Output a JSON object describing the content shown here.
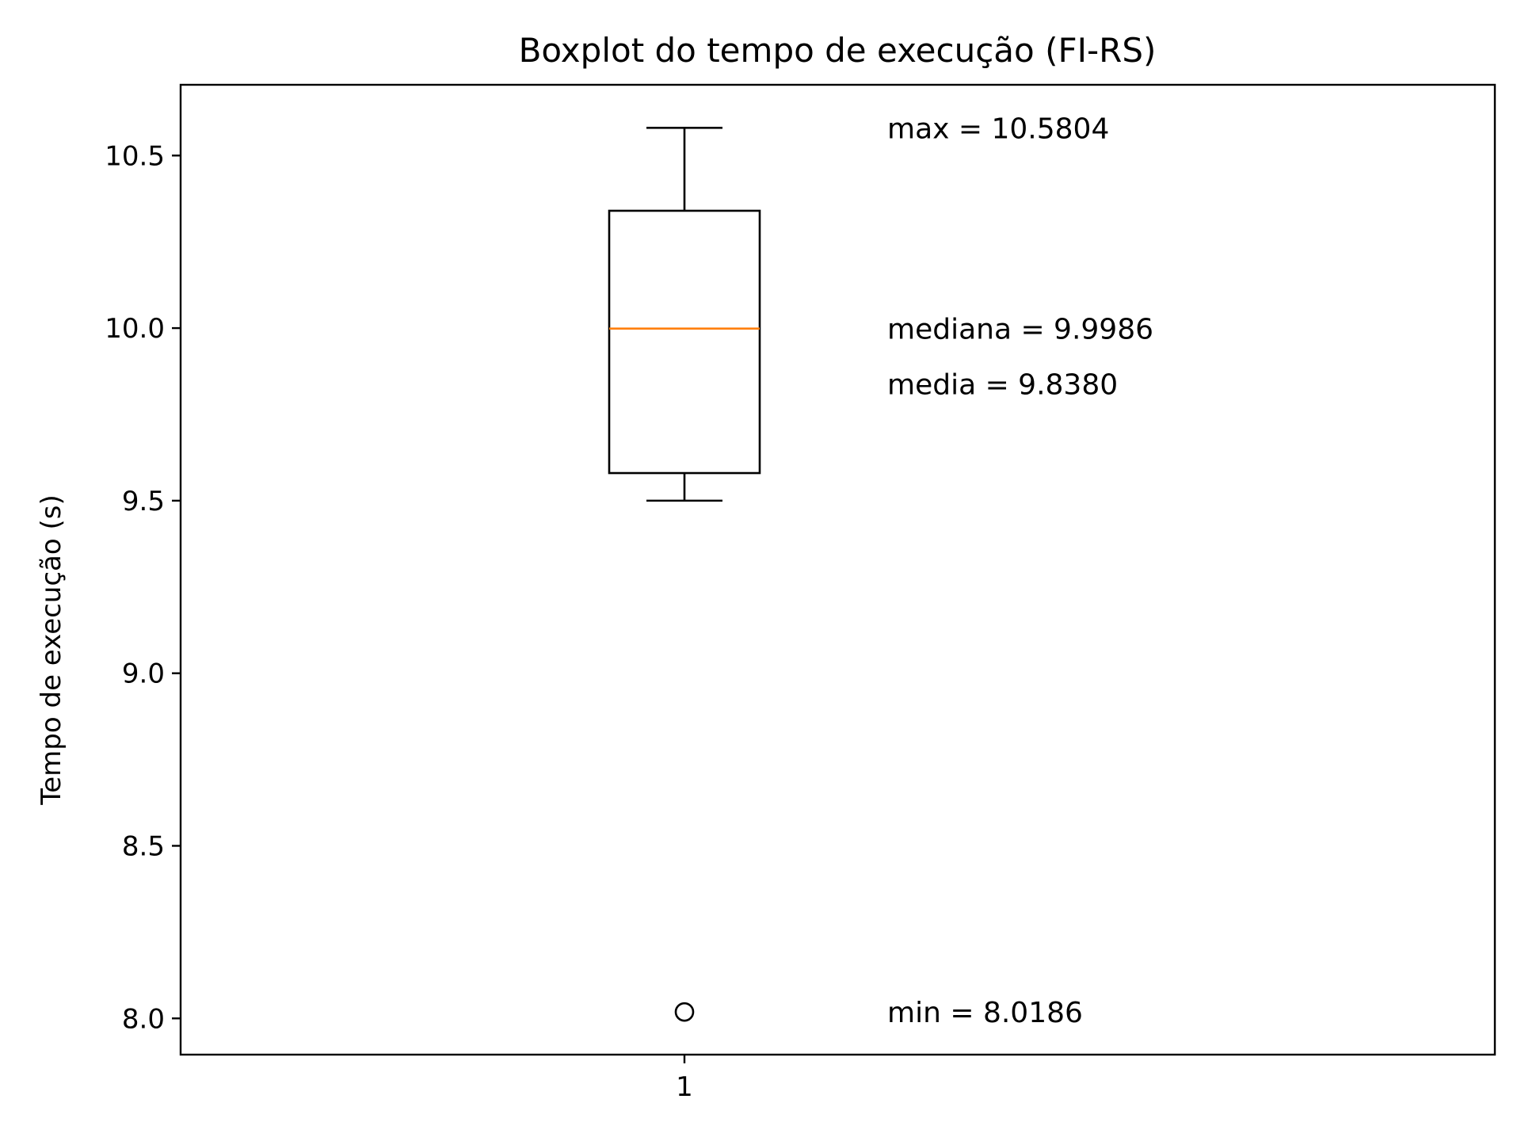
{
  "chart_data": {
    "type": "box",
    "title": "Boxplot do tempo de execução (FI-RS)",
    "xlabel": "",
    "ylabel": "Tempo de execução (s)",
    "categories": [
      "1"
    ],
    "ylim": [
      7.895,
      10.705
    ],
    "yticks": [
      "8.0",
      "8.5",
      "9.0",
      "9.5",
      "10.0",
      "10.5"
    ],
    "grid": false,
    "boxes": [
      {
        "category": "1",
        "whisker_low": 9.5,
        "q1": 9.58,
        "median": 9.9986,
        "q3": 10.34,
        "whisker_high": 10.5804,
        "outliers": [
          8.0186
        ]
      }
    ],
    "annotations": [
      {
        "text": "max = 10.5804",
        "y": 10.5804
      },
      {
        "text": "mediana = 9.9986",
        "y": 9.9986
      },
      {
        "text": "media = 9.8380",
        "y": 9.838
      },
      {
        "text": "min = 8.0186",
        "y": 8.0186
      }
    ],
    "colors": {
      "box": "#000000",
      "median": "#ff7f0e",
      "axes": "#000000"
    }
  }
}
